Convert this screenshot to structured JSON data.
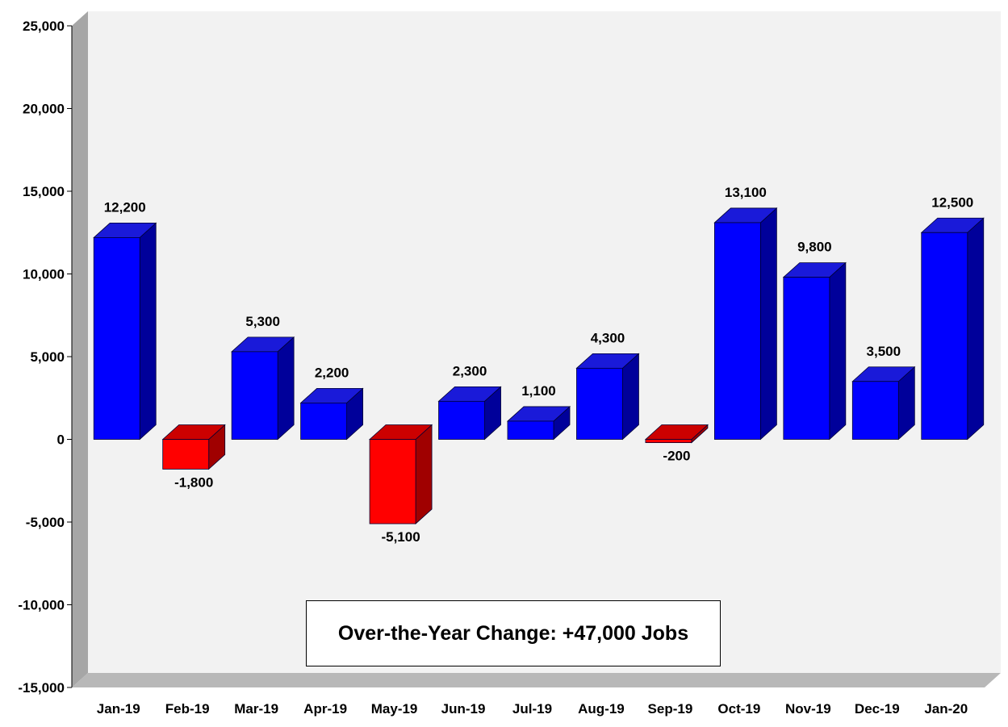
{
  "chart_data": {
    "type": "bar",
    "title": "",
    "xlabel": "",
    "ylabel": "",
    "categories": [
      "Jan-19",
      "Feb-19",
      "Mar-19",
      "Apr-19",
      "May-19",
      "Jun-19",
      "Jul-19",
      "Aug-19",
      "Sep-19",
      "Oct-19",
      "Nov-19",
      "Dec-19",
      "Jan-20"
    ],
    "values": [
      12200,
      -1800,
      5300,
      2200,
      -5100,
      2300,
      1100,
      4300,
      -200,
      13100,
      9800,
      3500,
      12500
    ],
    "data_labels": [
      "12,200",
      "-1,800",
      "5,300",
      "2,200",
      "-5,100",
      "2,300",
      "1,100",
      "4,300",
      "-200",
      "13,100",
      "9,800",
      "3,500",
      "12,500"
    ],
    "ylim": [
      -15000,
      25000
    ],
    "yticks": [
      25000,
      20000,
      15000,
      10000,
      5000,
      0,
      -5000,
      -10000,
      -15000
    ],
    "ytick_labels": [
      "25,000",
      "20,000",
      "15,000",
      "10,000",
      "5,000",
      "0",
      "-5,000",
      "-10,000",
      "-15,000"
    ],
    "grid": false,
    "style": "3d-bar",
    "colors": {
      "positive": "#0000ff",
      "positive_side": "#00009a",
      "positive_top": "#1a1ad9",
      "negative": "#ff0000",
      "negative_side": "#a00000",
      "negative_top": "#cc0000",
      "plot_background": "#f2f2f2",
      "left_wall": "#a6a6a6",
      "floor": "#b8b8b8"
    },
    "annotation": "Over-the-Year Change: +47,000 Jobs"
  }
}
